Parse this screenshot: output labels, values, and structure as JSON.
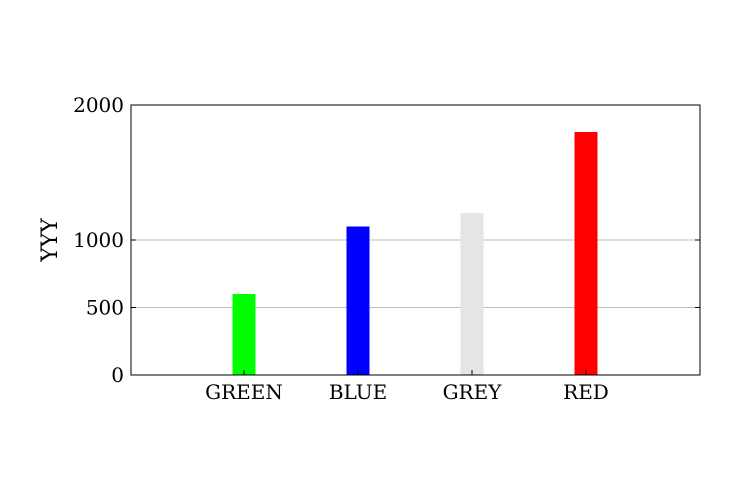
{
  "chart_data": {
    "type": "bar",
    "title": "",
    "xlabel": "",
    "ylabel": "YYY",
    "categories": [
      "GREEN",
      "BLUE",
      "GREY",
      "RED"
    ],
    "values": [
      600,
      1100,
      1200,
      1800
    ],
    "bar_colors": [
      "#00ff00",
      "#0000ff",
      "#e5e5e5",
      "#ff0000"
    ],
    "ylim": [
      0,
      2000
    ],
    "yticks": [
      0,
      500,
      1000,
      2000
    ],
    "grid": "horizontal",
    "legend": "none"
  }
}
